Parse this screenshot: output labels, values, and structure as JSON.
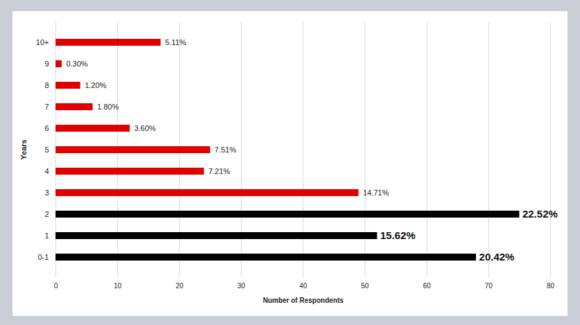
{
  "chart_data": {
    "type": "bar",
    "orientation": "horizontal",
    "categories": [
      "0-1",
      "1",
      "2",
      "3",
      "4",
      "5",
      "6",
      "7",
      "8",
      "9",
      "10+"
    ],
    "values": [
      68,
      52,
      75,
      49,
      24,
      25,
      12,
      6,
      4,
      1,
      17
    ],
    "value_labels": [
      "20.42%",
      "15.62%",
      "22.52%",
      "14.71%",
      "7.21%",
      "7.51%",
      "3.60%",
      "1.80%",
      "1.20%",
      "0.30%",
      "5.11%"
    ],
    "colors": [
      "#000000",
      "#000000",
      "#000000",
      "#e00000",
      "#e00000",
      "#e00000",
      "#e00000",
      "#e00000",
      "#e00000",
      "#e00000",
      "#e00000"
    ],
    "x_label": "Number of Respondents",
    "y_label": "Years",
    "xlim": [
      0,
      80
    ],
    "xticks": [
      0,
      10,
      20,
      30,
      40,
      50,
      60,
      70,
      80
    ],
    "grid": true,
    "data_labels": true
  }
}
